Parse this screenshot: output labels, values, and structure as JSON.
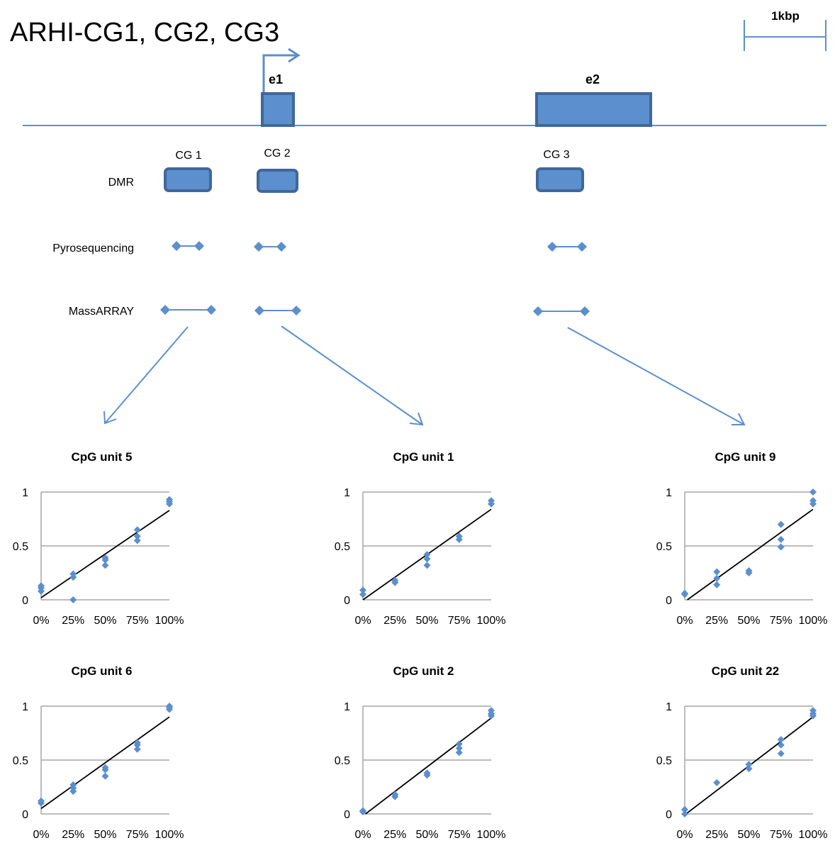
{
  "title": "ARHI-CG1, CG2, CG3",
  "scale_bar": {
    "label": "1kbp"
  },
  "colors": {
    "accent": "#5b8fcd",
    "accent_dark": "#41679a",
    "line": "#5b8fcd",
    "fit_line": "#000000",
    "grid": "#a6a6a6",
    "text": "#000000"
  },
  "gene": {
    "exons": [
      {
        "label": "e1"
      },
      {
        "label": "e2"
      }
    ],
    "tss_icon": "right-arrow-icon"
  },
  "regions": [
    {
      "label": "CG 1"
    },
    {
      "label": "CG 2"
    },
    {
      "label": "CG 3"
    }
  ],
  "tracks": [
    {
      "label": "DMR"
    },
    {
      "label": "Pyrosequencing"
    },
    {
      "label": "MassARRAY"
    }
  ],
  "chart_data": [
    {
      "type": "scatter",
      "title": "CpG unit 5",
      "categories": [
        "0%",
        "25%",
        "50%",
        "75%",
        "100%"
      ],
      "x": [
        0,
        0,
        0,
        0.25,
        0.25,
        0.25,
        0.5,
        0.5,
        0.5,
        0.75,
        0.75,
        0.75,
        1,
        1,
        1
      ],
      "y": [
        0.08,
        0.11,
        0.13,
        0.0,
        0.21,
        0.24,
        0.32,
        0.37,
        0.39,
        0.55,
        0.59,
        0.65,
        0.89,
        0.91,
        0.93
      ],
      "trendline": [
        [
          0,
          0.02
        ],
        [
          1,
          0.83
        ]
      ],
      "ylim": [
        0,
        1
      ],
      "yticks": [
        "0",
        "0.5",
        "1"
      ]
    },
    {
      "type": "scatter",
      "title": "CpG unit 1",
      "categories": [
        "0%",
        "25%",
        "50%",
        "75%",
        "100%"
      ],
      "x": [
        0,
        0,
        0.25,
        0.25,
        0.5,
        0.5,
        0.5,
        0.75,
        0.75,
        1,
        1
      ],
      "y": [
        0.05,
        0.09,
        0.16,
        0.18,
        0.32,
        0.38,
        0.42,
        0.56,
        0.59,
        0.89,
        0.92
      ],
      "trendline": [
        [
          0,
          0.0
        ],
        [
          1,
          0.84
        ]
      ],
      "ylim": [
        0,
        1
      ],
      "yticks": [
        "0",
        "0.5",
        "1"
      ]
    },
    {
      "type": "scatter",
      "title": "CpG unit 9",
      "categories": [
        "0%",
        "25%",
        "50%",
        "75%",
        "100%"
      ],
      "x": [
        0,
        0,
        0.25,
        0.25,
        0.25,
        0.5,
        0.5,
        0.75,
        0.75,
        0.75,
        1,
        1,
        1
      ],
      "y": [
        0.05,
        0.06,
        0.14,
        0.2,
        0.26,
        0.25,
        0.27,
        0.49,
        0.56,
        0.7,
        0.89,
        0.92,
        1.0
      ],
      "trendline": [
        [
          0.02,
          0.0
        ],
        [
          1,
          0.84
        ]
      ],
      "ylim": [
        0,
        1
      ],
      "yticks": [
        "0",
        "0.5",
        "1"
      ]
    },
    {
      "type": "scatter",
      "title": "CpG unit 6",
      "categories": [
        "0%",
        "25%",
        "50%",
        "75%",
        "100%"
      ],
      "x": [
        0,
        0,
        0.25,
        0.25,
        0.25,
        0.5,
        0.5,
        0.5,
        0.75,
        0.75,
        0.75,
        1,
        1,
        1
      ],
      "y": [
        0.1,
        0.12,
        0.21,
        0.24,
        0.27,
        0.35,
        0.41,
        0.43,
        0.6,
        0.64,
        0.66,
        0.97,
        0.99,
        1.0
      ],
      "trendline": [
        [
          0,
          0.05
        ],
        [
          1,
          0.9
        ]
      ],
      "ylim": [
        0,
        1
      ],
      "yticks": [
        "0",
        "0.5",
        "1"
      ]
    },
    {
      "type": "scatter",
      "title": "CpG unit 2",
      "categories": [
        "0%",
        "25%",
        "50%",
        "75%",
        "100%"
      ],
      "x": [
        0,
        0,
        0.25,
        0.25,
        0.5,
        0.5,
        0.75,
        0.75,
        0.75,
        1,
        1,
        1
      ],
      "y": [
        0.02,
        0.03,
        0.16,
        0.18,
        0.36,
        0.38,
        0.57,
        0.61,
        0.65,
        0.91,
        0.93,
        0.96
      ],
      "trendline": [
        [
          0.02,
          0.0
        ],
        [
          1,
          0.89
        ]
      ],
      "ylim": [
        0,
        1
      ],
      "yticks": [
        "0",
        "0.5",
        "1"
      ]
    },
    {
      "type": "scatter",
      "title": "CpG unit 22",
      "categories": [
        "0%",
        "25%",
        "50%",
        "75%",
        "100%"
      ],
      "x": [
        0,
        0,
        0.25,
        0.5,
        0.5,
        0.75,
        0.75,
        0.75,
        1,
        1,
        1
      ],
      "y": [
        0.0,
        0.04,
        0.29,
        0.42,
        0.46,
        0.56,
        0.64,
        0.69,
        0.91,
        0.93,
        0.96
      ],
      "trendline": [
        [
          0.01,
          0.0
        ],
        [
          1,
          0.9
        ]
      ],
      "ylim": [
        0,
        1
      ],
      "yticks": [
        "0",
        "0.5",
        "1"
      ]
    }
  ]
}
